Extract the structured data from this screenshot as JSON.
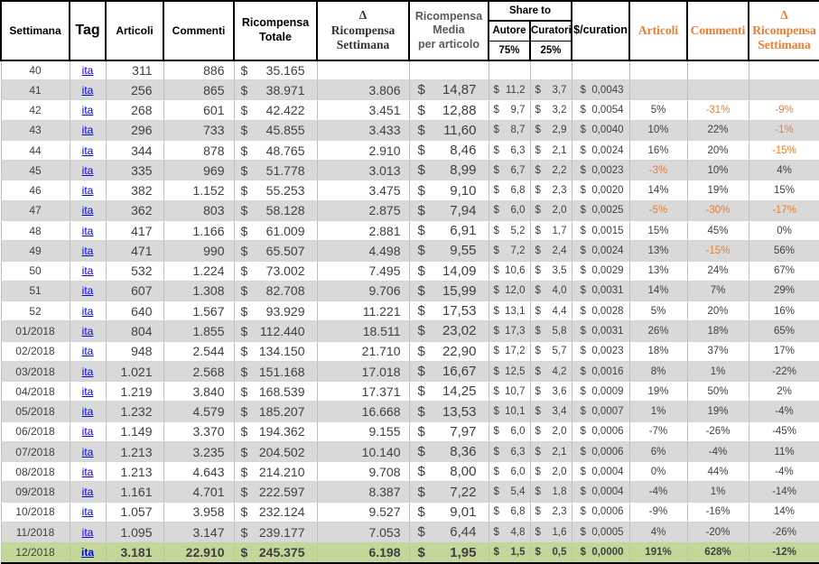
{
  "table": {
    "currency_symbol": "$",
    "headers": {
      "settimana": "Settimana",
      "tag": "Tag",
      "articoli": "Articoli",
      "commenti": "Commenti",
      "ricompensa_totale": "Ricompensa\nTotale",
      "delta_ricompensa": "Δ\nRicompensa\nSettimana",
      "ricompensa_media": "Ricompensa\nMedia\nper articolo",
      "share_to": "Share to",
      "autore": "Autore",
      "autore_share": "75%",
      "curatori": "Curatori",
      "curatori_share": "25%",
      "curation": "$/curation",
      "articoli_delta": "Articoli",
      "commenti_delta": "Commenti",
      "delta_ricompensa_2": "Δ\nRicompensa\nSettimana"
    },
    "rows": [
      {
        "week": "40",
        "tag": "ita",
        "articles": "311",
        "comments": "886",
        "total": "35.165",
        "delta": "",
        "avg": "",
        "author": "",
        "curators": "",
        "curation": "",
        "art_pct": "",
        "com_pct": "",
        "delta_pct": "",
        "orange": []
      },
      {
        "week": "41",
        "tag": "ita",
        "articles": "256",
        "comments": "865",
        "total": "38.971",
        "delta": "3.806",
        "avg": "14,87",
        "author": "11,2",
        "curators": "3,7",
        "curation": "0,0043",
        "art_pct": "",
        "com_pct": "",
        "delta_pct": "",
        "orange": []
      },
      {
        "week": "42",
        "tag": "ita",
        "articles": "268",
        "comments": "601",
        "total": "42.422",
        "delta": "3.451",
        "avg": "12,88",
        "author": "9,7",
        "curators": "3,2",
        "curation": "0,0054",
        "art_pct": "5%",
        "com_pct": "-31%",
        "delta_pct": "-9%",
        "orange": [
          "com_pct",
          "delta_pct"
        ]
      },
      {
        "week": "43",
        "tag": "ita",
        "articles": "296",
        "comments": "733",
        "total": "45.855",
        "delta": "3.433",
        "avg": "11,60",
        "author": "8,7",
        "curators": "2,9",
        "curation": "0,0040",
        "art_pct": "10%",
        "com_pct": "22%",
        "delta_pct": "-1%",
        "orange": [
          "delta_pct"
        ]
      },
      {
        "week": "44",
        "tag": "ita",
        "articles": "344",
        "comments": "878",
        "total": "48.765",
        "delta": "2.910",
        "avg": "8,46",
        "author": "6,3",
        "curators": "2,1",
        "curation": "0,0024",
        "art_pct": "16%",
        "com_pct": "20%",
        "delta_pct": "-15%",
        "orange": [
          "delta_pct"
        ]
      },
      {
        "week": "45",
        "tag": "ita",
        "articles": "335",
        "comments": "969",
        "total": "51.778",
        "delta": "3.013",
        "avg": "8,99",
        "author": "6,7",
        "curators": "2,2",
        "curation": "0,0023",
        "art_pct": "-3%",
        "com_pct": "10%",
        "delta_pct": "4%",
        "orange": [
          "art_pct"
        ]
      },
      {
        "week": "46",
        "tag": "ita",
        "articles": "382",
        "comments": "1.152",
        "total": "55.253",
        "delta": "3.475",
        "avg": "9,10",
        "author": "6,8",
        "curators": "2,3",
        "curation": "0,0020",
        "art_pct": "14%",
        "com_pct": "19%",
        "delta_pct": "15%",
        "orange": []
      },
      {
        "week": "47",
        "tag": "ita",
        "articles": "362",
        "comments": "803",
        "total": "58.128",
        "delta": "2.875",
        "avg": "7,94",
        "author": "6,0",
        "curators": "2,0",
        "curation": "0,0025",
        "art_pct": "-5%",
        "com_pct": "-30%",
        "delta_pct": "-17%",
        "orange": [
          "art_pct",
          "com_pct",
          "delta_pct"
        ]
      },
      {
        "week": "48",
        "tag": "ita",
        "articles": "417",
        "comments": "1.166",
        "total": "61.009",
        "delta": "2.881",
        "avg": "6,91",
        "author": "5,2",
        "curators": "1,7",
        "curation": "0,0015",
        "art_pct": "15%",
        "com_pct": "45%",
        "delta_pct": "0%",
        "orange": []
      },
      {
        "week": "49",
        "tag": "ita",
        "articles": "471",
        "comments": "990",
        "total": "65.507",
        "delta": "4.498",
        "avg": "9,55",
        "author": "7,2",
        "curators": "2,4",
        "curation": "0,0024",
        "art_pct": "13%",
        "com_pct": "-15%",
        "delta_pct": "56%",
        "orange": [
          "com_pct"
        ]
      },
      {
        "week": "50",
        "tag": "ita",
        "articles": "532",
        "comments": "1.224",
        "total": "73.002",
        "delta": "7.495",
        "avg": "14,09",
        "author": "10,6",
        "curators": "3,5",
        "curation": "0,0029",
        "art_pct": "13%",
        "com_pct": "24%",
        "delta_pct": "67%",
        "orange": []
      },
      {
        "week": "51",
        "tag": "ita",
        "articles": "607",
        "comments": "1.308",
        "total": "82.708",
        "delta": "9.706",
        "avg": "15,99",
        "author": "12,0",
        "curators": "4,0",
        "curation": "0,0031",
        "art_pct": "14%",
        "com_pct": "7%",
        "delta_pct": "29%",
        "orange": []
      },
      {
        "week": "52",
        "tag": "ita",
        "articles": "640",
        "comments": "1.567",
        "total": "93.929",
        "delta": "11.221",
        "avg": "17,53",
        "author": "13,1",
        "curators": "4,4",
        "curation": "0,0028",
        "art_pct": "5%",
        "com_pct": "20%",
        "delta_pct": "16%",
        "orange": []
      },
      {
        "week": "01/2018",
        "tag": "ita",
        "articles": "804",
        "comments": "1.855",
        "total": "112.440",
        "delta": "18.511",
        "avg": "23,02",
        "author": "17,3",
        "curators": "5,8",
        "curation": "0,0031",
        "art_pct": "26%",
        "com_pct": "18%",
        "delta_pct": "65%",
        "orange": []
      },
      {
        "week": "02/2018",
        "tag": "ita",
        "articles": "948",
        "comments": "2.544",
        "total": "134.150",
        "delta": "21.710",
        "avg": "22,90",
        "author": "17,2",
        "curators": "5,7",
        "curation": "0,0023",
        "art_pct": "18%",
        "com_pct": "37%",
        "delta_pct": "17%",
        "orange": []
      },
      {
        "week": "03/2018",
        "tag": "ita",
        "articles": "1.021",
        "comments": "2.568",
        "total": "151.168",
        "delta": "17.018",
        "avg": "16,67",
        "author": "12,5",
        "curators": "4,2",
        "curation": "0,0016",
        "art_pct": "8%",
        "com_pct": "1%",
        "delta_pct": "-22%",
        "orange": []
      },
      {
        "week": "04/2018",
        "tag": "ita",
        "articles": "1.219",
        "comments": "3.840",
        "total": "168.539",
        "delta": "17.371",
        "avg": "14,25",
        "author": "10,7",
        "curators": "3,6",
        "curation": "0,0009",
        "art_pct": "19%",
        "com_pct": "50%",
        "delta_pct": "2%",
        "orange": []
      },
      {
        "week": "05/2018",
        "tag": "ita",
        "articles": "1.232",
        "comments": "4.579",
        "total": "185.207",
        "delta": "16.668",
        "avg": "13,53",
        "author": "10,1",
        "curators": "3,4",
        "curation": "0,0007",
        "art_pct": "1%",
        "com_pct": "19%",
        "delta_pct": "-4%",
        "orange": []
      },
      {
        "week": "06/2018",
        "tag": "ita",
        "articles": "1.149",
        "comments": "3.370",
        "total": "194.362",
        "delta": "9.155",
        "avg": "7,97",
        "author": "6,0",
        "curators": "2,0",
        "curation": "0,0006",
        "art_pct": "-7%",
        "com_pct": "-26%",
        "delta_pct": "-45%",
        "orange": []
      },
      {
        "week": "07/2018",
        "tag": "ita",
        "articles": "1.213",
        "comments": "3.235",
        "total": "204.502",
        "delta": "10.140",
        "avg": "8,36",
        "author": "6,3",
        "curators": "2,1",
        "curation": "0,0006",
        "art_pct": "6%",
        "com_pct": "-4%",
        "delta_pct": "11%",
        "orange": []
      },
      {
        "week": "08/2018",
        "tag": "ita",
        "articles": "1.213",
        "comments": "4.643",
        "total": "214.210",
        "delta": "9.708",
        "avg": "8,00",
        "author": "6,0",
        "curators": "2,0",
        "curation": "0,0004",
        "art_pct": "0%",
        "com_pct": "44%",
        "delta_pct": "-4%",
        "orange": []
      },
      {
        "week": "09/2018",
        "tag": "ita",
        "articles": "1.161",
        "comments": "4.701",
        "total": "222.597",
        "delta": "8.387",
        "avg": "7,22",
        "author": "5,4",
        "curators": "1,8",
        "curation": "0,0004",
        "art_pct": "-4%",
        "com_pct": "1%",
        "delta_pct": "-14%",
        "orange": []
      },
      {
        "week": "10/2018",
        "tag": "ita",
        "articles": "1.057",
        "comments": "3.958",
        "total": "232.124",
        "delta": "9.527",
        "avg": "9,01",
        "author": "6,8",
        "curators": "2,3",
        "curation": "0,0006",
        "art_pct": "-9%",
        "com_pct": "-16%",
        "delta_pct": "14%",
        "orange": []
      },
      {
        "week": "11/2018",
        "tag": "ita",
        "articles": "1.095",
        "comments": "3.147",
        "total": "239.177",
        "delta": "7.053",
        "avg": "6,44",
        "author": "4,8",
        "curators": "1,6",
        "curation": "0,0005",
        "art_pct": "4%",
        "com_pct": "-20%",
        "delta_pct": "-26%",
        "orange": []
      },
      {
        "week": "12/2018",
        "tag": "ita",
        "articles": "3.181",
        "comments": "22.910",
        "total": "245.375",
        "delta": "6.198",
        "avg": "1,95",
        "author": "1,5",
        "curators": "0,5",
        "curation": "0,0000",
        "art_pct": "191%",
        "com_pct": "628%",
        "delta_pct": "-12%",
        "orange": [],
        "highlight": true
      }
    ]
  },
  "colors": {
    "orange_accent": "#ED7D31",
    "data_text": "#3F3F3F",
    "row_shade": "#D9D9D9",
    "highlight_row": "#C4D79B",
    "link_blue": "#0000EE"
  }
}
